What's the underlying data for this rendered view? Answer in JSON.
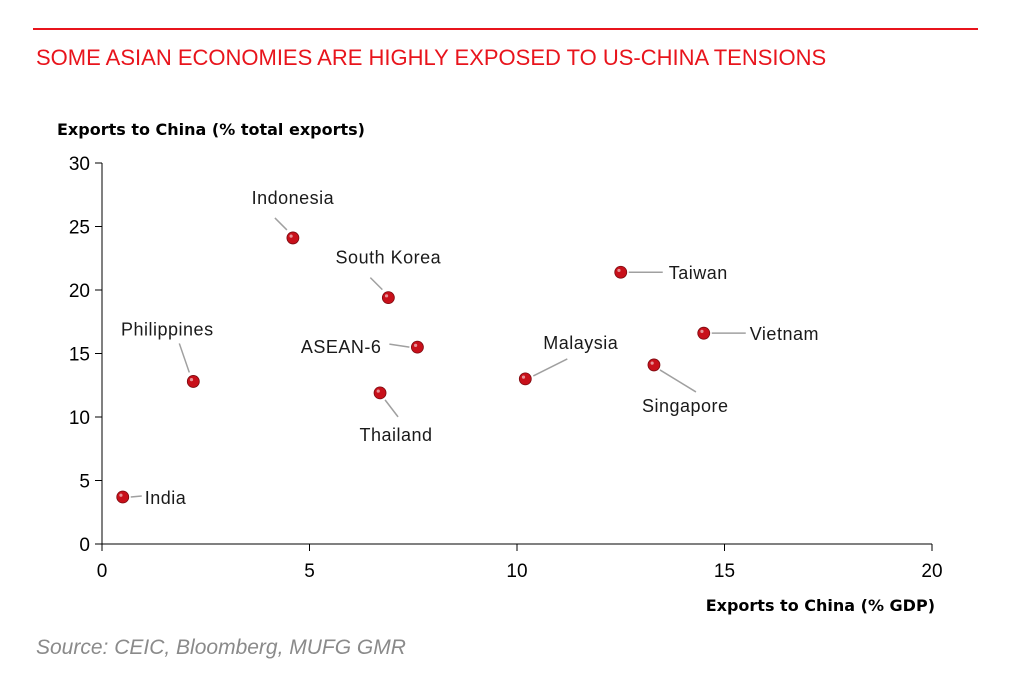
{
  "header": {
    "title": "SOME ASIAN ECONOMIES ARE HIGHLY EXPOSED TO US-CHINA TENSIONS"
  },
  "footer": {
    "source": "Source: CEIC, Bloomberg, MUFG GMR"
  },
  "colors": {
    "accent": "#e8141c",
    "marker": "#c8101a",
    "leader": "#a0a0a0"
  },
  "chart_data": {
    "type": "scatter",
    "title": "SOME ASIAN ECONOMIES ARE HIGHLY EXPOSED TO US-CHINA TENSIONS",
    "xlabel": "Exports to China (% GDP)",
    "ylabel": "Exports to China (% total exports)",
    "xlim": [
      0,
      20
    ],
    "ylim": [
      0,
      30
    ],
    "xticks": [
      0,
      5,
      10,
      15,
      20
    ],
    "yticks": [
      0,
      5,
      10,
      15,
      20,
      25,
      30
    ],
    "grid": false,
    "points": [
      {
        "label": "Indonesia",
        "x": 4.6,
        "y": 24.1,
        "label_pos": "above"
      },
      {
        "label": "South Korea",
        "x": 6.9,
        "y": 19.4,
        "label_pos": "above"
      },
      {
        "label": "ASEAN-6",
        "x": 7.6,
        "y": 15.5,
        "label_pos": "left"
      },
      {
        "label": "Philippines",
        "x": 2.2,
        "y": 12.8,
        "label_pos": "above-left"
      },
      {
        "label": "Thailand",
        "x": 6.7,
        "y": 11.9,
        "label_pos": "below"
      },
      {
        "label": "India",
        "x": 0.5,
        "y": 3.7,
        "label_pos": "right"
      },
      {
        "label": "Malaysia",
        "x": 10.2,
        "y": 13.0,
        "label_pos": "above-right"
      },
      {
        "label": "Taiwan",
        "x": 12.5,
        "y": 21.4,
        "label_pos": "right"
      },
      {
        "label": "Vietnam",
        "x": 14.5,
        "y": 16.6,
        "label_pos": "right"
      },
      {
        "label": "Singapore",
        "x": 13.3,
        "y": 14.1,
        "label_pos": "below-right"
      }
    ]
  }
}
